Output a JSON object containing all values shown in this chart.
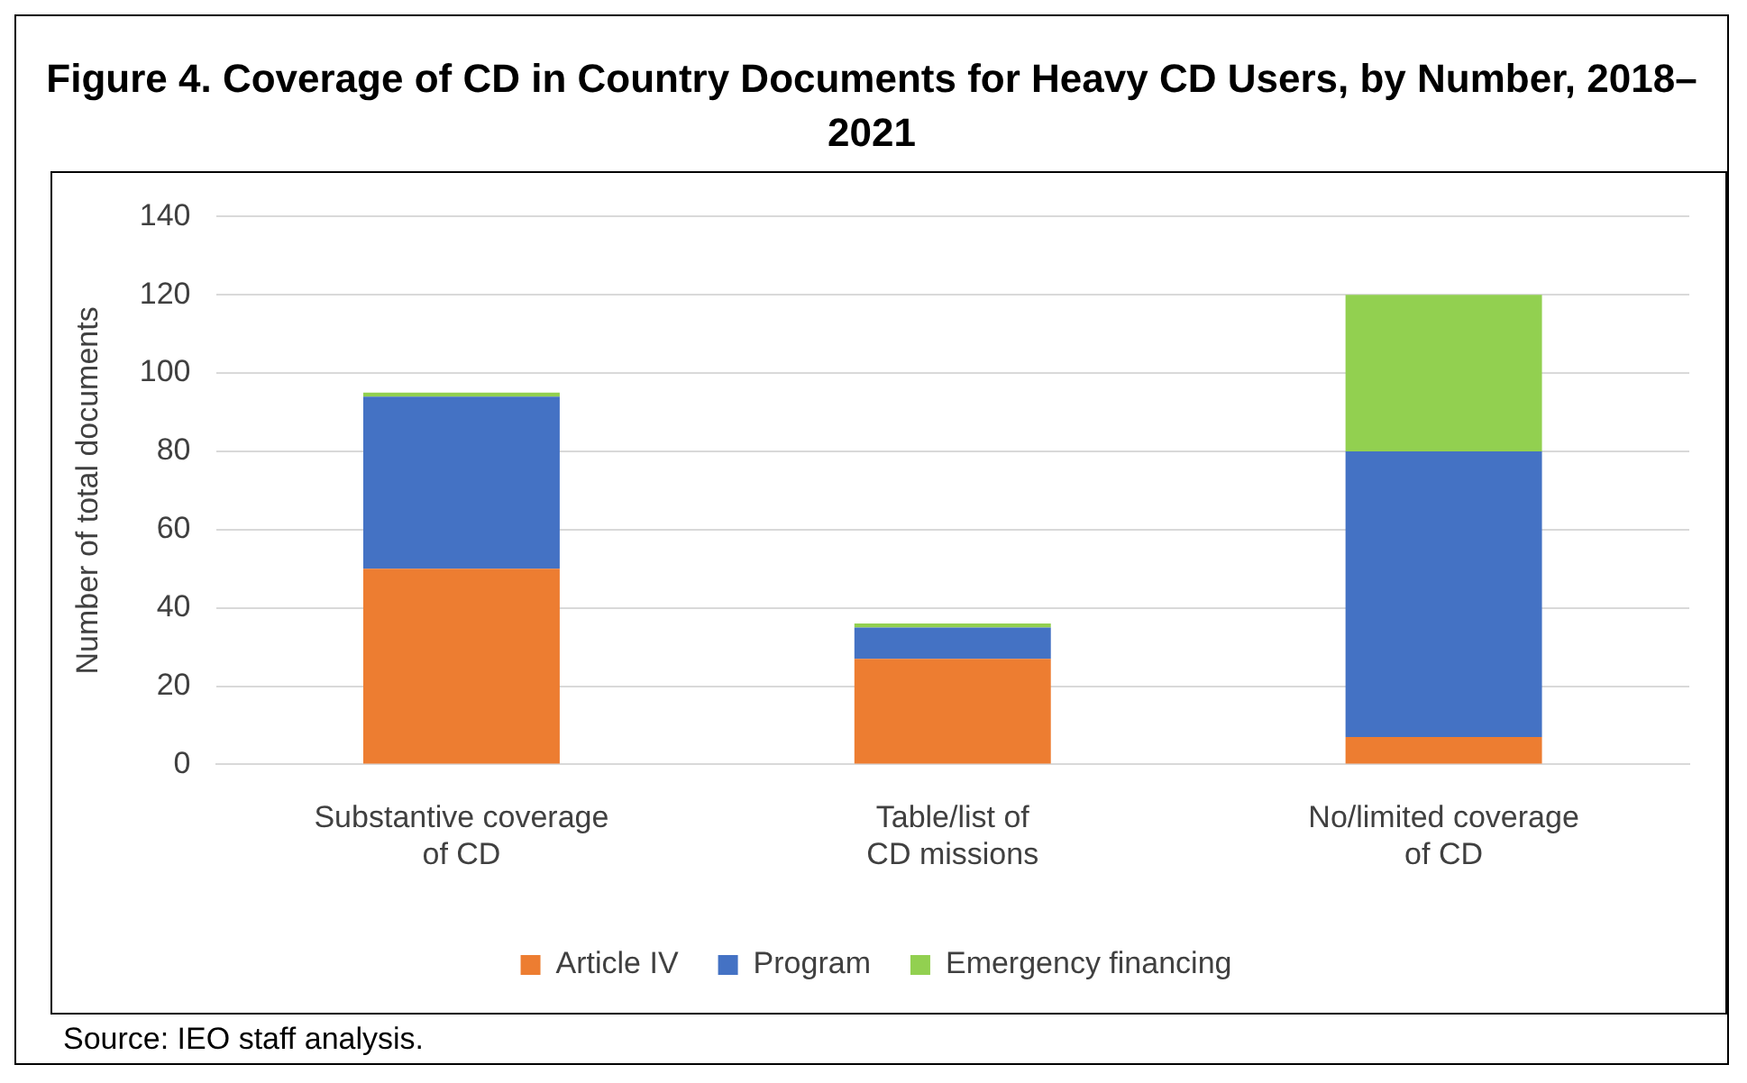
{
  "chart_data": {
    "type": "bar",
    "title": "Figure 4. Coverage of CD in Country Documents for Heavy CD Users, by Number, 2018–2021",
    "ylabel": "Number of total documents",
    "categories": [
      [
        "Substantive coverage",
        "of CD"
      ],
      [
        "Table/list of",
        "CD missions"
      ],
      [
        "No/limited coverage",
        "of CD"
      ]
    ],
    "series": [
      {
        "name": "Article IV",
        "color": "#ed7d31",
        "values": [
          50,
          27,
          7
        ]
      },
      {
        "name": "Program",
        "color": "#4472c4",
        "values": [
          44,
          8,
          73
        ]
      },
      {
        "name": "Emergency financing",
        "color": "#92d050",
        "values": [
          1,
          1,
          40
        ]
      }
    ],
    "stacked": true,
    "ylim": [
      0,
      140
    ],
    "yticks": [
      0,
      20,
      40,
      60,
      80,
      100,
      120,
      140
    ],
    "grid": "y",
    "legend": "bottom",
    "annotations": [
      "Source: IEO staff analysis."
    ]
  }
}
